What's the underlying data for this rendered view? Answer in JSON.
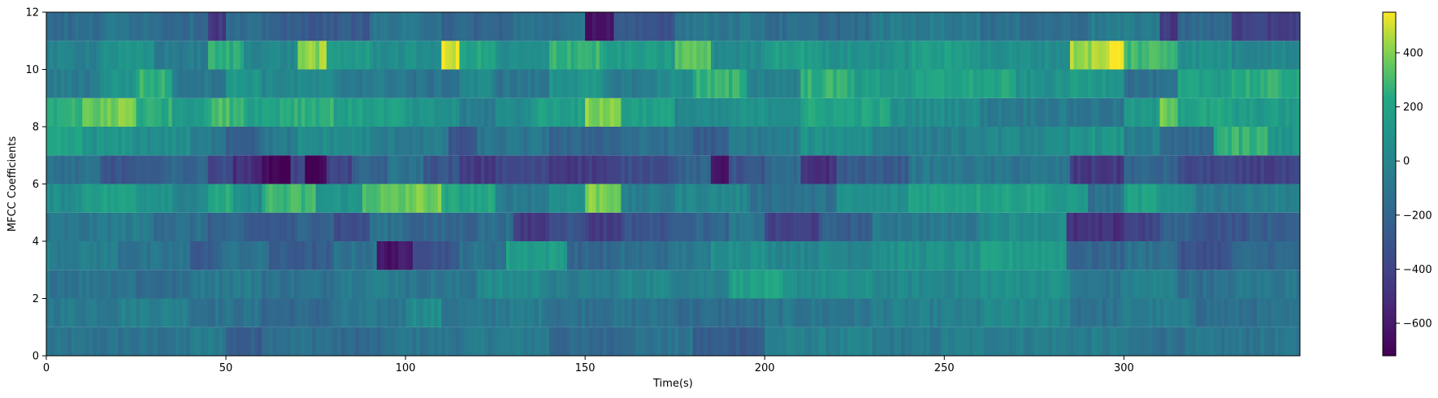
{
  "chart_data": {
    "type": "heatmap",
    "title": "",
    "xlabel": "Time(s)",
    "ylabel": "MFCC Coefficients",
    "xlim": [
      0,
      349
    ],
    "ylim": [
      0,
      12
    ],
    "x_ticks": [
      0,
      50,
      100,
      150,
      200,
      250,
      300
    ],
    "y_ticks": [
      0,
      2,
      4,
      6,
      8,
      10,
      12
    ],
    "x_tick_labels": [
      "0",
      "50",
      "100",
      "150",
      "200",
      "250",
      "300"
    ],
    "y_tick_labels": [
      "0",
      "2",
      "4",
      "6",
      "8",
      "10",
      "12"
    ],
    "colormap": "viridis",
    "grid": false,
    "colorbar": {
      "range": [
        -720,
        550
      ],
      "ticks": [
        400,
        200,
        0,
        -200,
        -400,
        -600
      ],
      "tick_labels": [
        "400",
        "200",
        "0",
        "−200",
        "−400",
        "−600"
      ]
    },
    "rows": 12,
    "row_segments": [
      [
        [
          0,
          40,
          -120
        ],
        [
          40,
          50,
          -60
        ],
        [
          50,
          60,
          -250
        ],
        [
          60,
          80,
          -120
        ],
        [
          80,
          95,
          -180
        ],
        [
          95,
          120,
          -100
        ],
        [
          120,
          140,
          -60
        ],
        [
          140,
          160,
          -180
        ],
        [
          160,
          180,
          -120
        ],
        [
          180,
          200,
          -250
        ],
        [
          200,
          230,
          -30
        ],
        [
          230,
          250,
          -80
        ],
        [
          250,
          285,
          -40
        ],
        [
          285,
          300,
          -60
        ],
        [
          300,
          320,
          -120
        ],
        [
          320,
          349,
          -100
        ]
      ],
      [
        [
          0,
          20,
          -60
        ],
        [
          20,
          40,
          -20
        ],
        [
          40,
          60,
          -120
        ],
        [
          60,
          80,
          -180
        ],
        [
          80,
          100,
          -100
        ],
        [
          100,
          110,
          50
        ],
        [
          110,
          125,
          -100
        ],
        [
          125,
          140,
          -60
        ],
        [
          140,
          175,
          -120
        ],
        [
          175,
          200,
          -160
        ],
        [
          200,
          230,
          -100
        ],
        [
          230,
          260,
          -40
        ],
        [
          260,
          285,
          20
        ],
        [
          285,
          300,
          -120
        ],
        [
          300,
          320,
          -60
        ],
        [
          320,
          349,
          -140
        ]
      ],
      [
        [
          0,
          25,
          -100
        ],
        [
          25,
          40,
          -160
        ],
        [
          40,
          60,
          -60
        ],
        [
          60,
          80,
          -120
        ],
        [
          80,
          100,
          -40
        ],
        [
          100,
          120,
          -100
        ],
        [
          120,
          140,
          40
        ],
        [
          140,
          160,
          -60
        ],
        [
          160,
          175,
          20
        ],
        [
          175,
          190,
          -20
        ],
        [
          190,
          205,
          180
        ],
        [
          205,
          230,
          60
        ],
        [
          230,
          260,
          20
        ],
        [
          260,
          285,
          80
        ],
        [
          285,
          300,
          -100
        ],
        [
          300,
          315,
          -20
        ],
        [
          315,
          330,
          -140
        ],
        [
          330,
          349,
          -80
        ]
      ],
      [
        [
          0,
          20,
          -40
        ],
        [
          20,
          40,
          -120
        ],
        [
          40,
          48,
          -260
        ],
        [
          48,
          62,
          -120
        ],
        [
          62,
          80,
          -260
        ],
        [
          80,
          92,
          -120
        ],
        [
          92,
          102,
          -620
        ],
        [
          102,
          115,
          -300
        ],
        [
          115,
          128,
          -120
        ],
        [
          128,
          145,
          160
        ],
        [
          145,
          160,
          -200
        ],
        [
          160,
          175,
          -140
        ],
        [
          175,
          185,
          -80
        ],
        [
          185,
          200,
          80
        ],
        [
          200,
          230,
          20
        ],
        [
          230,
          260,
          80
        ],
        [
          260,
          284,
          160
        ],
        [
          284,
          300,
          -200
        ],
        [
          300,
          315,
          -120
        ],
        [
          315,
          330,
          -320
        ],
        [
          330,
          349,
          -180
        ]
      ],
      [
        [
          0,
          15,
          -100
        ],
        [
          15,
          30,
          -60
        ],
        [
          30,
          45,
          -140
        ],
        [
          45,
          55,
          -220
        ],
        [
          55,
          70,
          -280
        ],
        [
          70,
          80,
          -200
        ],
        [
          80,
          90,
          -340
        ],
        [
          90,
          100,
          -120
        ],
        [
          100,
          120,
          -200
        ],
        [
          120,
          130,
          -140
        ],
        [
          130,
          140,
          -460
        ],
        [
          140,
          150,
          -300
        ],
        [
          150,
          160,
          -440
        ],
        [
          160,
          175,
          -300
        ],
        [
          175,
          190,
          -200
        ],
        [
          190,
          200,
          -100
        ],
        [
          200,
          215,
          -420
        ],
        [
          215,
          230,
          -240
        ],
        [
          230,
          260,
          -80
        ],
        [
          260,
          284,
          60
        ],
        [
          284,
          300,
          -500
        ],
        [
          300,
          310,
          -400
        ],
        [
          310,
          320,
          -220
        ],
        [
          320,
          335,
          -300
        ],
        [
          335,
          349,
          -240
        ]
      ],
      [
        [
          0,
          10,
          60
        ],
        [
          10,
          25,
          180
        ],
        [
          25,
          35,
          120
        ],
        [
          35,
          45,
          0
        ],
        [
          45,
          52,
          220
        ],
        [
          52,
          60,
          40
        ],
        [
          60,
          75,
          280
        ],
        [
          75,
          88,
          100
        ],
        [
          88,
          100,
          330
        ],
        [
          100,
          110,
          380
        ],
        [
          110,
          125,
          200
        ],
        [
          125,
          140,
          -60
        ],
        [
          140,
          150,
          80
        ],
        [
          150,
          160,
          400
        ],
        [
          160,
          175,
          -60
        ],
        [
          175,
          195,
          20
        ],
        [
          195,
          220,
          -120
        ],
        [
          220,
          240,
          60
        ],
        [
          240,
          280,
          200
        ],
        [
          280,
          290,
          120
        ],
        [
          290,
          300,
          -120
        ],
        [
          300,
          310,
          180
        ],
        [
          310,
          320,
          60
        ],
        [
          320,
          335,
          -60
        ],
        [
          335,
          349,
          -20
        ]
      ],
      [
        [
          0,
          15,
          -140
        ],
        [
          15,
          30,
          -300
        ],
        [
          30,
          45,
          -200
        ],
        [
          45,
          52,
          -360
        ],
        [
          52,
          60,
          -500
        ],
        [
          60,
          68,
          -700
        ],
        [
          68,
          72,
          -400
        ],
        [
          72,
          78,
          -700
        ],
        [
          78,
          85,
          -400
        ],
        [
          85,
          95,
          -220
        ],
        [
          95,
          105,
          -120
        ],
        [
          105,
          115,
          -300
        ],
        [
          115,
          125,
          -460
        ],
        [
          125,
          140,
          -380
        ],
        [
          140,
          160,
          -440
        ],
        [
          160,
          175,
          -340
        ],
        [
          175,
          185,
          -220
        ],
        [
          185,
          190,
          -620
        ],
        [
          190,
          200,
          -300
        ],
        [
          200,
          210,
          -180
        ],
        [
          210,
          220,
          -500
        ],
        [
          220,
          240,
          -260
        ],
        [
          240,
          260,
          -80
        ],
        [
          260,
          285,
          -100
        ],
        [
          285,
          300,
          -460
        ],
        [
          300,
          315,
          -200
        ],
        [
          315,
          330,
          -380
        ],
        [
          330,
          349,
          -420
        ]
      ],
      [
        [
          0,
          10,
          180
        ],
        [
          10,
          25,
          100
        ],
        [
          25,
          40,
          60
        ],
        [
          40,
          50,
          -60
        ],
        [
          50,
          60,
          -220
        ],
        [
          60,
          70,
          -80
        ],
        [
          70,
          90,
          40
        ],
        [
          90,
          112,
          -60
        ],
        [
          112,
          120,
          -320
        ],
        [
          120,
          140,
          -100
        ],
        [
          140,
          160,
          -200
        ],
        [
          160,
          180,
          -140
        ],
        [
          180,
          190,
          -260
        ],
        [
          190,
          210,
          -60
        ],
        [
          210,
          230,
          80
        ],
        [
          230,
          260,
          -40
        ],
        [
          260,
          285,
          20
        ],
        [
          285,
          300,
          100
        ],
        [
          300,
          310,
          -40
        ],
        [
          310,
          325,
          -200
        ],
        [
          325,
          340,
          260
        ],
        [
          340,
          349,
          120
        ]
      ],
      [
        [
          0,
          10,
          240
        ],
        [
          10,
          20,
          360
        ],
        [
          20,
          25,
          420
        ],
        [
          25,
          35,
          240
        ],
        [
          35,
          45,
          160
        ],
        [
          45,
          55,
          300
        ],
        [
          55,
          65,
          200
        ],
        [
          65,
          80,
          260
        ],
        [
          80,
          100,
          180
        ],
        [
          100,
          115,
          80
        ],
        [
          115,
          125,
          -60
        ],
        [
          125,
          135,
          40
        ],
        [
          135,
          150,
          180
        ],
        [
          150,
          160,
          400
        ],
        [
          160,
          175,
          180
        ],
        [
          175,
          190,
          20
        ],
        [
          190,
          210,
          80
        ],
        [
          210,
          235,
          200
        ],
        [
          235,
          260,
          60
        ],
        [
          260,
          285,
          -60
        ],
        [
          285,
          300,
          -100
        ],
        [
          300,
          310,
          120
        ],
        [
          310,
          315,
          380
        ],
        [
          315,
          330,
          200
        ],
        [
          330,
          349,
          140
        ]
      ],
      [
        [
          0,
          15,
          -60
        ],
        [
          15,
          25,
          100
        ],
        [
          25,
          35,
          260
        ],
        [
          35,
          50,
          -80
        ],
        [
          50,
          60,
          120
        ],
        [
          60,
          80,
          20
        ],
        [
          80,
          100,
          -60
        ],
        [
          100,
          115,
          -120
        ],
        [
          115,
          125,
          20
        ],
        [
          125,
          140,
          -100
        ],
        [
          140,
          155,
          100
        ],
        [
          155,
          170,
          -60
        ],
        [
          170,
          180,
          60
        ],
        [
          180,
          195,
          260
        ],
        [
          195,
          210,
          -20
        ],
        [
          210,
          225,
          260
        ],
        [
          225,
          245,
          160
        ],
        [
          245,
          270,
          200
        ],
        [
          270,
          284,
          80
        ],
        [
          284,
          300,
          140
        ],
        [
          300,
          315,
          -140
        ],
        [
          315,
          330,
          180
        ],
        [
          330,
          349,
          240
        ]
      ],
      [
        [
          0,
          15,
          -20
        ],
        [
          15,
          30,
          80
        ],
        [
          30,
          45,
          -60
        ],
        [
          45,
          55,
          240
        ],
        [
          55,
          70,
          20
        ],
        [
          70,
          78,
          420
        ],
        [
          78,
          90,
          140
        ],
        [
          90,
          110,
          60
        ],
        [
          110,
          115,
          500
        ],
        [
          115,
          125,
          200
        ],
        [
          125,
          140,
          40
        ],
        [
          140,
          155,
          280
        ],
        [
          155,
          175,
          140
        ],
        [
          175,
          185,
          340
        ],
        [
          185,
          200,
          40
        ],
        [
          200,
          215,
          180
        ],
        [
          215,
          240,
          80
        ],
        [
          240,
          260,
          160
        ],
        [
          260,
          285,
          60
        ],
        [
          285,
          295,
          440
        ],
        [
          295,
          300,
          520
        ],
        [
          300,
          315,
          300
        ],
        [
          315,
          330,
          80
        ],
        [
          330,
          349,
          20
        ]
      ],
      [
        [
          0,
          15,
          -160
        ],
        [
          15,
          30,
          -100
        ],
        [
          30,
          45,
          -160
        ],
        [
          45,
          50,
          -450
        ],
        [
          50,
          65,
          -180
        ],
        [
          65,
          90,
          -260
        ],
        [
          90,
          110,
          -100
        ],
        [
          110,
          130,
          -200
        ],
        [
          130,
          150,
          -120
        ],
        [
          150,
          158,
          -620
        ],
        [
          158,
          175,
          -300
        ],
        [
          175,
          200,
          -80
        ],
        [
          200,
          230,
          -160
        ],
        [
          230,
          260,
          -60
        ],
        [
          260,
          290,
          -140
        ],
        [
          290,
          310,
          -60
        ],
        [
          310,
          315,
          -450
        ],
        [
          315,
          330,
          -180
        ],
        [
          330,
          349,
          -420
        ]
      ]
    ]
  }
}
